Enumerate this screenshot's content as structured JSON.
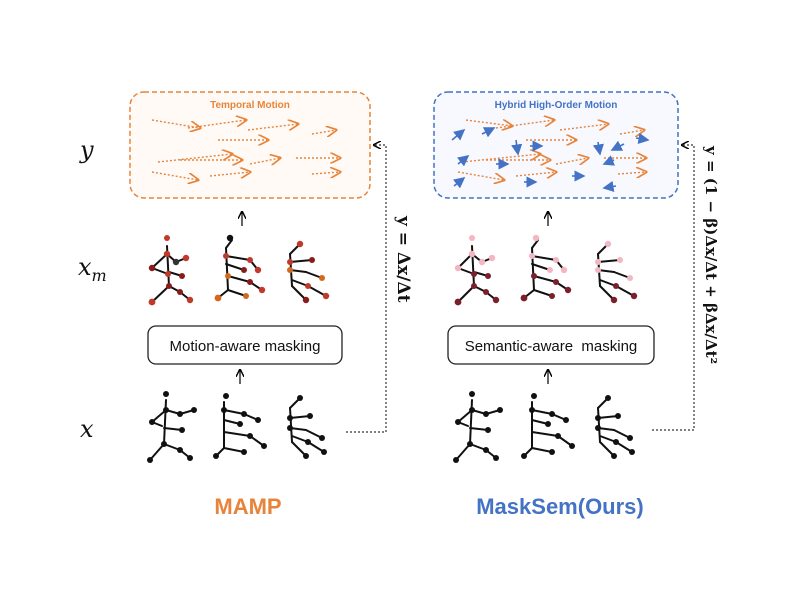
{
  "row_labels": {
    "y": "y",
    "xm_base": "x",
    "xm_sub": "m",
    "x": "x"
  },
  "left_panel": {
    "box_title": "Temporal Motion",
    "masking_label": "Motion-aware masking",
    "target_formula": "y = Δx/Δt",
    "method_name": "MAMP"
  },
  "right_panel": {
    "box_title": "Hybrid High-Order Motion",
    "masking_label": "Semantic-aware  masking",
    "target_formula": "y = (1 − β)Δx/Δt + βΔx/Δt²",
    "method_name": "MaskSem(Ours)"
  },
  "colors": {
    "orange": "#E8843A",
    "blue": "#4472C4",
    "skeleton": "#111111",
    "mask_red_dark": "#8B1A1A",
    "mask_red": "#C0392B",
    "mask_orange": "#D2691E",
    "mask_pink": "#F4B6C2",
    "mask_maroon": "#7A1F2B"
  }
}
